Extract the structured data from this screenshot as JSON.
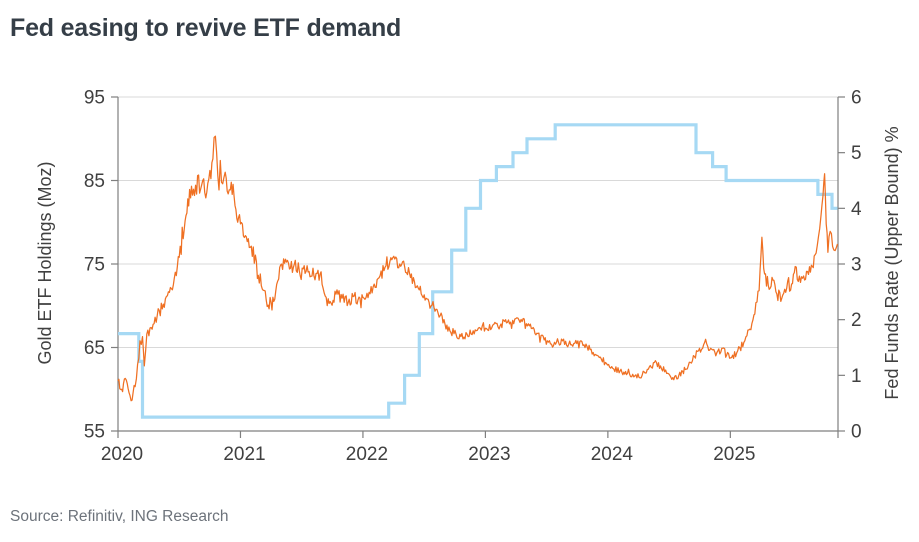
{
  "title": "Fed easing to revive ETF demand",
  "source": "Source: Refinitiv, ING Research",
  "colors": {
    "gold_line": "#ef7023",
    "fed_line": "#a6d9f4",
    "grid": "#d9d9d9",
    "frame": "#7f7f7f",
    "tick_text": "#404040",
    "title_text": "#353e47",
    "source_text": "#6d737b"
  },
  "chart_data": {
    "type": "line",
    "title": "Fed easing to revive ETF demand",
    "source": "Source: Refinitiv, ING Research",
    "grid": "horizontal-only",
    "legend": "none",
    "x_axis": {
      "range": [
        2020.0,
        2025.875
      ],
      "tick_labels": [
        "2020",
        "2021",
        "2022",
        "2023",
        "2024",
        "2025"
      ],
      "tick_values": [
        2020,
        2021,
        2022,
        2023,
        2024,
        2025
      ]
    },
    "left_axis": {
      "label": "Gold ETF  Holdings (Moz)",
      "range": [
        55,
        95
      ],
      "tick_values": [
        55,
        65,
        75,
        85,
        95
      ]
    },
    "right_axis": {
      "label": "Fed Funds Rate (Upper Bound) %",
      "range": [
        0,
        6
      ],
      "tick_values": [
        0,
        1,
        2,
        3,
        4,
        5,
        6
      ]
    },
    "series": [
      {
        "name": "Gold ETF Holdings (Moz)",
        "axis": "left",
        "style": "jagged-line",
        "color": "#ef7023",
        "points_format": [
          "year_decimal",
          "moz",
          "daily_noise_amplitude"
        ],
        "points": [
          [
            2020.0,
            61.0,
            0.8
          ],
          [
            2020.03,
            60.0,
            0.8
          ],
          [
            2020.06,
            61.3,
            0.7
          ],
          [
            2020.09,
            59.6,
            0.7
          ],
          [
            2020.115,
            58.7,
            0.7
          ],
          [
            2020.14,
            60.3,
            0.9
          ],
          [
            2020.16,
            63.0,
            0.9
          ],
          [
            2020.18,
            65.8,
            0.9
          ],
          [
            2020.2,
            66.3,
            1.0
          ],
          [
            2020.215,
            62.8,
            1.0
          ],
          [
            2020.235,
            66.6,
            0.8
          ],
          [
            2020.27,
            67.4,
            0.7
          ],
          [
            2020.32,
            68.8,
            0.7
          ],
          [
            2020.37,
            70.2,
            0.7
          ],
          [
            2020.42,
            71.6,
            0.8
          ],
          [
            2020.46,
            73.3,
            0.8
          ],
          [
            2020.5,
            75.8,
            0.9
          ],
          [
            2020.54,
            79.0,
            1.0
          ],
          [
            2020.57,
            82.8,
            1.3
          ],
          [
            2020.6,
            84.3,
            1.4
          ],
          [
            2020.625,
            83.2,
            1.4
          ],
          [
            2020.65,
            85.6,
            1.5
          ],
          [
            2020.675,
            84.0,
            1.5
          ],
          [
            2020.7,
            85.2,
            1.5
          ],
          [
            2020.725,
            83.6,
            1.5
          ],
          [
            2020.75,
            86.2,
            1.5
          ],
          [
            2020.775,
            87.6,
            1.5
          ],
          [
            2020.795,
            90.3,
            1.2
          ],
          [
            2020.815,
            85.6,
            1.5
          ],
          [
            2020.835,
            87.4,
            1.5
          ],
          [
            2020.855,
            84.6,
            1.4
          ],
          [
            2020.875,
            86.0,
            1.3
          ],
          [
            2020.9,
            83.4,
            1.3
          ],
          [
            2020.925,
            84.8,
            1.2
          ],
          [
            2020.955,
            82.0,
            1.1
          ],
          [
            2021.0,
            79.8,
            1.0
          ],
          [
            2021.04,
            78.4,
            0.9
          ],
          [
            2021.08,
            77.0,
            0.9
          ],
          [
            2021.13,
            75.3,
            0.9
          ],
          [
            2021.17,
            72.4,
            0.9
          ],
          [
            2021.21,
            70.7,
            1.0
          ],
          [
            2021.25,
            70.4,
            1.1
          ],
          [
            2021.28,
            70.8,
            0.9
          ],
          [
            2021.32,
            74.6,
            1.0
          ],
          [
            2021.36,
            75.1,
            0.8
          ],
          [
            2021.4,
            74.4,
            0.8
          ],
          [
            2021.44,
            75.0,
            0.8
          ],
          [
            2021.48,
            74.2,
            0.8
          ],
          [
            2021.52,
            74.8,
            0.8
          ],
          [
            2021.56,
            74.1,
            0.8
          ],
          [
            2021.6,
            73.6,
            0.8
          ],
          [
            2021.65,
            73.8,
            0.8
          ],
          [
            2021.7,
            71.0,
            0.9
          ],
          [
            2021.74,
            70.3,
            0.8
          ],
          [
            2021.78,
            71.4,
            0.8
          ],
          [
            2021.83,
            70.9,
            0.7
          ],
          [
            2021.88,
            70.4,
            0.7
          ],
          [
            2021.92,
            71.1,
            0.7
          ],
          [
            2021.96,
            70.7,
            0.7
          ],
          [
            2022.0,
            71.0,
            0.6
          ],
          [
            2022.05,
            71.6,
            0.6
          ],
          [
            2022.1,
            72.2,
            0.6
          ],
          [
            2022.14,
            73.6,
            0.7
          ],
          [
            2022.18,
            74.6,
            0.7
          ],
          [
            2022.22,
            75.3,
            0.7
          ],
          [
            2022.26,
            75.6,
            0.7
          ],
          [
            2022.3,
            75.0,
            0.7
          ],
          [
            2022.34,
            74.7,
            0.7
          ],
          [
            2022.38,
            73.9,
            0.7
          ],
          [
            2022.42,
            72.9,
            0.7
          ],
          [
            2022.46,
            71.9,
            0.6
          ],
          [
            2022.5,
            71.3,
            0.6
          ],
          [
            2022.54,
            70.4,
            0.6
          ],
          [
            2022.58,
            69.8,
            0.6
          ],
          [
            2022.63,
            68.8,
            0.6
          ],
          [
            2022.67,
            67.8,
            0.6
          ],
          [
            2022.71,
            67.0,
            0.5
          ],
          [
            2022.76,
            66.6,
            0.5
          ],
          [
            2022.8,
            66.3,
            0.5
          ],
          [
            2022.85,
            66.6,
            0.5
          ],
          [
            2022.9,
            67.0,
            0.5
          ],
          [
            2022.95,
            67.4,
            0.5
          ],
          [
            2023.0,
            67.3,
            0.45
          ],
          [
            2023.06,
            67.7,
            0.45
          ],
          [
            2023.12,
            67.6,
            0.45
          ],
          [
            2023.18,
            68.0,
            0.5
          ],
          [
            2023.24,
            68.4,
            0.5
          ],
          [
            2023.3,
            68.1,
            0.5
          ],
          [
            2023.36,
            67.6,
            0.5
          ],
          [
            2023.42,
            66.7,
            0.45
          ],
          [
            2023.48,
            65.9,
            0.45
          ],
          [
            2023.54,
            65.4,
            0.45
          ],
          [
            2023.58,
            65.6,
            0.45
          ],
          [
            2023.63,
            65.8,
            0.45
          ],
          [
            2023.68,
            65.4,
            0.4
          ],
          [
            2023.73,
            65.5,
            0.4
          ],
          [
            2023.78,
            65.8,
            0.4
          ],
          [
            2023.83,
            65.1,
            0.4
          ],
          [
            2023.88,
            64.4,
            0.4
          ],
          [
            2023.93,
            63.8,
            0.4
          ],
          [
            2023.98,
            63.2,
            0.4
          ],
          [
            2024.04,
            62.5,
            0.35
          ],
          [
            2024.1,
            62.2,
            0.35
          ],
          [
            2024.16,
            61.9,
            0.35
          ],
          [
            2024.22,
            61.6,
            0.35
          ],
          [
            2024.28,
            61.7,
            0.35
          ],
          [
            2024.33,
            62.4,
            0.4
          ],
          [
            2024.38,
            63.2,
            0.45
          ],
          [
            2024.43,
            62.8,
            0.4
          ],
          [
            2024.48,
            61.9,
            0.4
          ],
          [
            2024.53,
            61.4,
            0.4
          ],
          [
            2024.58,
            61.7,
            0.4
          ],
          [
            2024.64,
            62.4,
            0.4
          ],
          [
            2024.69,
            63.4,
            0.45
          ],
          [
            2024.74,
            64.6,
            0.5
          ],
          [
            2024.79,
            65.6,
            0.5
          ],
          [
            2024.84,
            64.9,
            0.5
          ],
          [
            2024.89,
            64.4,
            0.5
          ],
          [
            2024.93,
            64.9,
            0.5
          ],
          [
            2024.97,
            64.1,
            0.5
          ],
          [
            2025.01,
            63.8,
            0.5
          ],
          [
            2025.06,
            64.6,
            0.5
          ],
          [
            2025.11,
            65.6,
            0.55
          ],
          [
            2025.16,
            67.2,
            0.6
          ],
          [
            2025.2,
            69.0,
            0.7
          ],
          [
            2025.235,
            71.8,
            0.8
          ],
          [
            2025.258,
            78.2,
            0.5
          ],
          [
            2025.28,
            73.8,
            1.0
          ],
          [
            2025.31,
            72.4,
            0.9
          ],
          [
            2025.34,
            73.4,
            0.9
          ],
          [
            2025.38,
            71.4,
            0.8
          ],
          [
            2025.42,
            70.9,
            0.8
          ],
          [
            2025.46,
            72.1,
            0.8
          ],
          [
            2025.5,
            72.6,
            0.8
          ],
          [
            2025.53,
            74.7,
            0.7
          ],
          [
            2025.555,
            72.9,
            0.7
          ],
          [
            2025.59,
            73.3,
            0.7
          ],
          [
            2025.63,
            74.1,
            0.7
          ],
          [
            2025.67,
            74.7,
            0.7
          ],
          [
            2025.7,
            76.3,
            0.8
          ],
          [
            2025.72,
            78.3,
            0.8
          ],
          [
            2025.74,
            80.8,
            0.9
          ],
          [
            2025.757,
            83.2,
            0.9
          ],
          [
            2025.77,
            85.8,
            0.4
          ],
          [
            2025.783,
            79.8,
            0.9
          ],
          [
            2025.797,
            76.4,
            0.8
          ],
          [
            2025.815,
            78.9,
            0.7
          ],
          [
            2025.835,
            77.1,
            0.7
          ],
          [
            2025.855,
            76.6,
            0.6
          ],
          [
            2025.875,
            77.4,
            0.4
          ]
        ]
      },
      {
        "name": "Fed Funds Rate (Upper Bound) %",
        "axis": "right",
        "style": "step-line",
        "color": "#a6d9f4",
        "points_format": [
          "year_decimal",
          "percent"
        ],
        "points": [
          [
            2020.0,
            1.75
          ],
          [
            2020.17,
            1.25
          ],
          [
            2020.2,
            0.25
          ],
          [
            2022.21,
            0.5
          ],
          [
            2022.34,
            1.0
          ],
          [
            2022.46,
            1.75
          ],
          [
            2022.57,
            2.5
          ],
          [
            2022.725,
            3.25
          ],
          [
            2022.84,
            4.0
          ],
          [
            2022.96,
            4.5
          ],
          [
            2023.09,
            4.75
          ],
          [
            2023.225,
            5.0
          ],
          [
            2023.34,
            5.25
          ],
          [
            2023.57,
            5.5
          ],
          [
            2024.72,
            5.0
          ],
          [
            2024.855,
            4.75
          ],
          [
            2024.965,
            4.5
          ],
          [
            2025.715,
            4.25
          ],
          [
            2025.83,
            4.0
          ],
          [
            2025.875,
            4.0
          ]
        ]
      }
    ]
  }
}
